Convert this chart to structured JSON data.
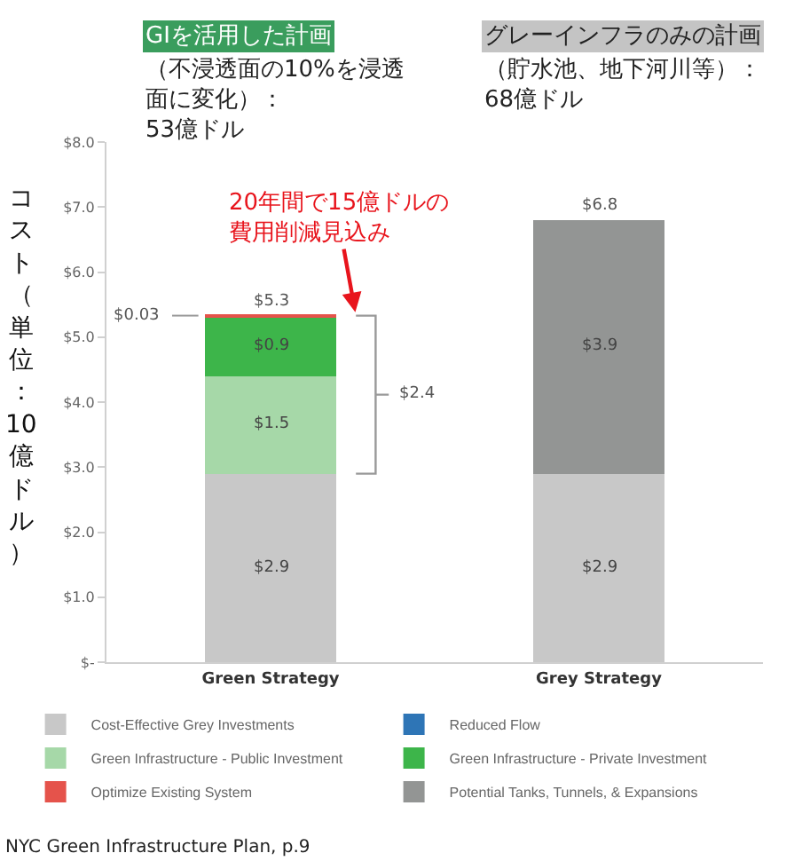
{
  "chart_data": {
    "type": "bar",
    "stacked": true,
    "categories": [
      "Green Strategy",
      "Grey Strategy"
    ],
    "ylabel": "コスト（単位：10億ドル）",
    "ylim": [
      0,
      8
    ],
    "yticks": [
      {
        "value": 0,
        "label": "$-"
      },
      {
        "value": 1,
        "label": "$1.0"
      },
      {
        "value": 2,
        "label": "$2.0"
      },
      {
        "value": 3,
        "label": "$3.0"
      },
      {
        "value": 4,
        "label": "$4.0"
      },
      {
        "value": 5,
        "label": "$5.0"
      },
      {
        "value": 6,
        "label": "$6.0"
      },
      {
        "value": 7,
        "label": "$7.0"
      },
      {
        "value": 8,
        "label": "$8.0"
      }
    ],
    "series": [
      {
        "name": "Cost-Effective Grey Investments",
        "color": "#c8c8c8",
        "values": [
          2.9,
          2.9
        ],
        "value_labels": [
          "$2.9",
          "$2.9"
        ]
      },
      {
        "name": "Reduced Flow",
        "color": "#2e75b6",
        "values": [
          null,
          null
        ]
      },
      {
        "name": "Green Infrastructure - Public Investment",
        "color": "#a6d8a8",
        "values": [
          1.5,
          null
        ],
        "value_labels": [
          "$1.5",
          null
        ]
      },
      {
        "name": "Green Infrastructure - Private Investment",
        "color": "#3db54a",
        "values": [
          0.9,
          null
        ],
        "value_labels": [
          "$0.9",
          null
        ]
      },
      {
        "name": "Optimize Existing System",
        "color": "#e5534b",
        "values": [
          0.03,
          null
        ],
        "value_labels": [
          "$0.03",
          null
        ]
      },
      {
        "name": "Potential Tanks, Tunnels, & Expansions",
        "color": "#939594",
        "values": [
          null,
          3.9
        ],
        "value_labels": [
          null,
          "$3.9"
        ]
      }
    ],
    "totals": [
      "$5.3",
      "$6.8"
    ],
    "annotations": [
      "20年間で15億ドルの費用削減見込み",
      "$2.4",
      "GIを活用した計画",
      "（不浸透面の10%を浸透面に変化）：53億ドル",
      "グレーインフラのみの計画",
      "（貯水池、地下河川等）：68億ドル",
      "NYC Green Infrastructure Plan, p.9"
    ],
    "legend": "bottom",
    "grid": false
  }
}
